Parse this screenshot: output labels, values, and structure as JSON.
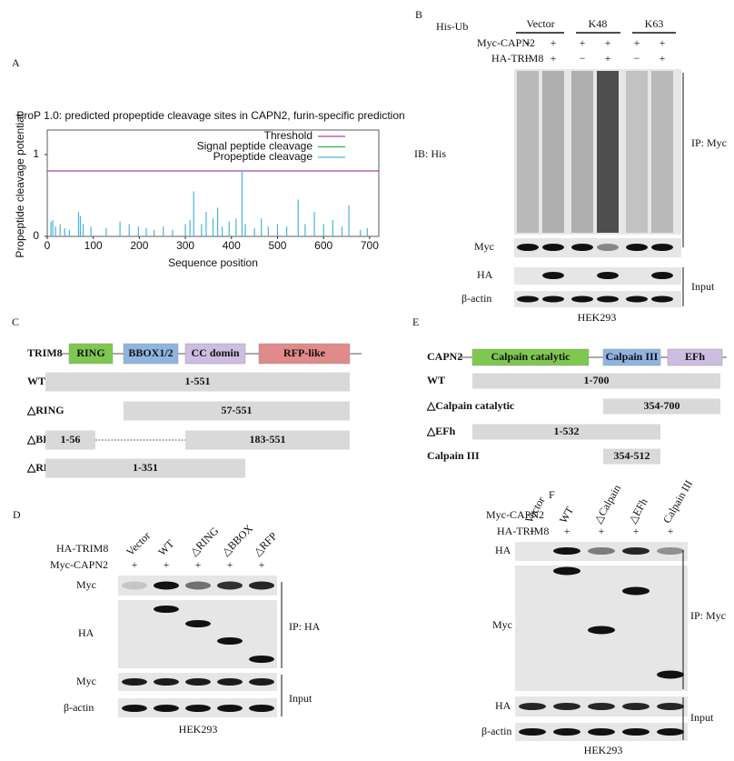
{
  "chart_data": {
    "type": "bar",
    "panel": "A",
    "title": "ProP 1.0: predicted propeptide cleavage sites in CAPN2, furin-specific prediction",
    "x_label": "Sequence position",
    "y_label": "Propeptide cleavage potential",
    "x": [
      8,
      12,
      18,
      28,
      38,
      48,
      68,
      72,
      78,
      95,
      128,
      158,
      178,
      198,
      215,
      232,
      252,
      272,
      300,
      310,
      318,
      335,
      345,
      360,
      370,
      380,
      395,
      410,
      423,
      430,
      450,
      465,
      480,
      500,
      520,
      545,
      560,
      580,
      600,
      620,
      640,
      655,
      680,
      695
    ],
    "series": [
      {
        "name": "Threshold",
        "color": "#a349a4",
        "threshold": 0.8
      },
      {
        "name": "Signal peptide cleavage",
        "color": "#3aa35a"
      },
      {
        "name": "Propeptide cleavage",
        "color": "#4bb3dc",
        "values": [
          0.18,
          0.2,
          0.12,
          0.15,
          0.1,
          0.08,
          0.3,
          0.25,
          0.15,
          0.12,
          0.1,
          0.18,
          0.15,
          0.12,
          0.1,
          0.08,
          0.12,
          0.08,
          0.15,
          0.2,
          0.55,
          0.15,
          0.3,
          0.22,
          0.35,
          0.12,
          0.18,
          0.22,
          0.8,
          0.15,
          0.1,
          0.22,
          0.12,
          0.15,
          0.12,
          0.45,
          0.15,
          0.3,
          0.15,
          0.2,
          0.12,
          0.38,
          0.08,
          0.1
        ]
      }
    ],
    "xlim": [
      0,
      720
    ],
    "ylim": [
      0,
      1.3
    ],
    "xticks": [
      0,
      100,
      200,
      300,
      400,
      500,
      600,
      700
    ],
    "yticks": [
      0,
      1
    ],
    "legend": "upper right"
  },
  "panel_b": {
    "label": "B",
    "header": {
      "name": "His-Ub",
      "groups": [
        "Vector",
        "K48",
        "K63"
      ]
    },
    "rows": [
      {
        "name": "Myc-CAPN2",
        "marks": [
          "+",
          "+",
          "+",
          "+",
          "+",
          "+"
        ]
      },
      {
        "name": "HA-TRIM8",
        "marks": [
          "−",
          "+",
          "−",
          "+",
          "−",
          "+"
        ]
      }
    ],
    "blots": [
      "IB: His",
      "Myc",
      "HA",
      "β-actin"
    ],
    "brackets": [
      "IP: Myc",
      "Input"
    ],
    "cell_line": "HEK293"
  },
  "panel_c": {
    "label": "C",
    "protein": "TRIM8",
    "domains": [
      "RING",
      "BBOX1/2",
      "CC domin",
      "RFP-like"
    ],
    "constructs": [
      {
        "name": "WT",
        "segments": [
          "1-551"
        ]
      },
      {
        "name": "△RING",
        "segments": [
          "57-551"
        ]
      },
      {
        "name": "△BBOX",
        "segments": [
          "1-56",
          "183-551"
        ]
      },
      {
        "name": "△RFP",
        "segments": [
          "1-351"
        ]
      }
    ]
  },
  "panel_d": {
    "label": "D",
    "header": {
      "name": "HA-TRIM8",
      "lanes": [
        "Vector",
        "WT",
        "△RING",
        "△BBOX",
        "△RFP"
      ]
    },
    "rows": [
      {
        "name": "Myc-CAPN2",
        "marks": [
          "+",
          "+",
          "+",
          "+",
          "+"
        ]
      }
    ],
    "blots": [
      "Myc",
      "HA",
      "Myc",
      "β-actin"
    ],
    "brackets": [
      "IP: HA",
      "Input"
    ],
    "cell_line": "HEK293"
  },
  "panel_e": {
    "label": "E",
    "protein": "CAPN2",
    "domains": [
      "Calpain catalytic",
      "Calpain III",
      "EFh"
    ],
    "constructs": [
      {
        "name": "WT",
        "segments": [
          "1-700"
        ]
      },
      {
        "name": "△Calpain catalytic",
        "segments": [
          "354-700"
        ]
      },
      {
        "name": "△EFh",
        "segments": [
          "1-532"
        ]
      },
      {
        "name": "Calpain III",
        "segments": [
          "354-512"
        ]
      }
    ]
  },
  "panel_f": {
    "label": "F",
    "header": {
      "name": "Myc-CAPN2",
      "lanes": [
        "Vector",
        "WT",
        "△Calpain",
        "△EFh",
        "Calpain III"
      ]
    },
    "rows": [
      {
        "name": "HA-TRIM8",
        "marks": [
          "+",
          "+",
          "+",
          "+",
          "+"
        ]
      }
    ],
    "blots": [
      "HA",
      "Myc",
      "HA",
      "β-actin"
    ],
    "brackets": [
      "IP: Myc",
      "Input"
    ],
    "cell_line": "HEK293"
  }
}
